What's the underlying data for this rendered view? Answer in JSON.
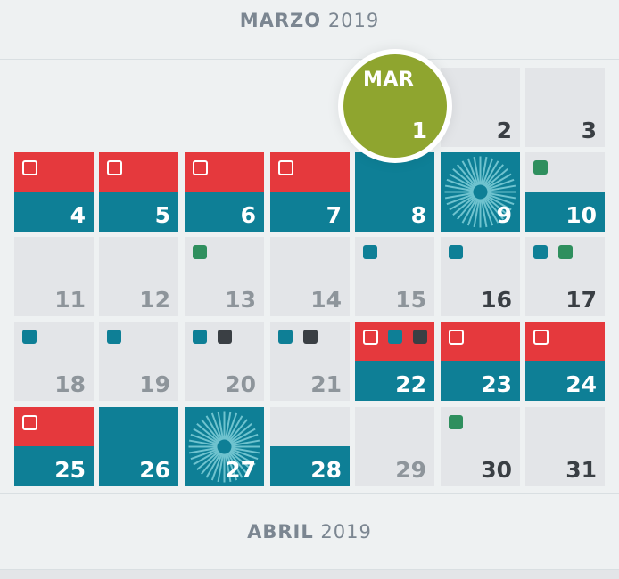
{
  "months": [
    {
      "name": "MARZO",
      "year": "2019"
    },
    {
      "name": "ABRIL",
      "year": "2019"
    }
  ],
  "today": {
    "weekday": "MAR",
    "day": "1",
    "color": "#8fa52f"
  },
  "colors": {
    "red": "#e5393d",
    "teal": "#0e7f96",
    "green": "#2f8f5e",
    "dark": "#3a3f44",
    "grey": "#e3e5e8"
  },
  "days": [
    {
      "day": "2",
      "num_style": "dark"
    },
    {
      "day": "3",
      "num_style": "dark"
    },
    {
      "day": "4",
      "red": true,
      "teal": "half",
      "markers": [
        "checkbox"
      ],
      "num_style": "white"
    },
    {
      "day": "5",
      "red": true,
      "teal": "half",
      "markers": [
        "checkbox"
      ],
      "num_style": "white"
    },
    {
      "day": "6",
      "red": true,
      "teal": "half",
      "markers": [
        "checkbox"
      ],
      "num_style": "white"
    },
    {
      "day": "7",
      "red": true,
      "teal": "half",
      "markers": [
        "checkbox"
      ],
      "num_style": "white"
    },
    {
      "day": "8",
      "teal": "full",
      "num_style": "white"
    },
    {
      "day": "9",
      "teal": "full",
      "burst": true,
      "num_style": "white"
    },
    {
      "day": "10",
      "teal": "half",
      "markers": [
        "green"
      ],
      "num_style": "white"
    },
    {
      "day": "11"
    },
    {
      "day": "12"
    },
    {
      "day": "13",
      "markers": [
        "green"
      ]
    },
    {
      "day": "14"
    },
    {
      "day": "15",
      "markers": [
        "teal"
      ]
    },
    {
      "day": "16",
      "markers": [
        "teal"
      ],
      "num_style": "dark"
    },
    {
      "day": "17",
      "markers": [
        "teal",
        "green"
      ],
      "num_style": "dark"
    },
    {
      "day": "18",
      "markers": [
        "teal"
      ]
    },
    {
      "day": "19",
      "markers": [
        "teal"
      ]
    },
    {
      "day": "20",
      "markers": [
        "teal",
        "dark"
      ]
    },
    {
      "day": "21",
      "markers": [
        "teal",
        "dark"
      ]
    },
    {
      "day": "22",
      "red": true,
      "teal": "half",
      "markers": [
        "checkbox",
        "teal",
        "dark"
      ],
      "num_style": "white"
    },
    {
      "day": "23",
      "red": true,
      "teal": "half",
      "markers": [
        "checkbox"
      ],
      "num_style": "white"
    },
    {
      "day": "24",
      "red": true,
      "teal": "half",
      "markers": [
        "checkbox"
      ],
      "num_style": "white"
    },
    {
      "day": "25",
      "red": true,
      "teal": "half",
      "markers": [
        "checkbox"
      ],
      "num_style": "white"
    },
    {
      "day": "26",
      "teal": "full",
      "num_style": "white"
    },
    {
      "day": "27",
      "teal": "full",
      "burst": true,
      "num_style": "white"
    },
    {
      "day": "28",
      "teal": "half",
      "num_style": "white"
    },
    {
      "day": "29"
    },
    {
      "day": "30",
      "markers": [
        "green"
      ],
      "num_style": "dark"
    },
    {
      "day": "31",
      "num_style": "dark"
    }
  ]
}
